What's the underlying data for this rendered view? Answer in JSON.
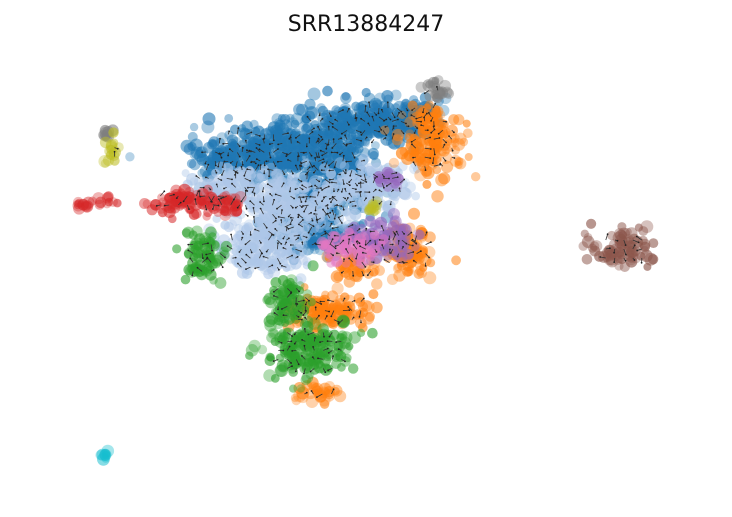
{
  "chart_data": {
    "type": "scatter",
    "title": "SRR13884247",
    "xlabel": "",
    "ylabel": "",
    "axes_visible": false,
    "grid": false,
    "legend": "none",
    "overlay": "velocity-arrows",
    "xlim": [
      0,
      100
    ],
    "ylim": [
      0,
      100
    ],
    "series": [
      {
        "color": "#1f77b4",
        "blobs": [
          [
            36,
            78,
            10,
            6
          ],
          [
            48,
            84,
            8,
            5
          ],
          [
            44,
            72,
            6,
            10
          ],
          [
            30,
            76,
            6,
            4
          ],
          [
            55,
            86,
            6,
            4
          ],
          [
            42,
            60,
            6,
            5
          ]
        ]
      },
      {
        "color": "#aec7e8",
        "blobs": [
          [
            38,
            66,
            8,
            6
          ],
          [
            50,
            70,
            6,
            5
          ],
          [
            28,
            70,
            5,
            4
          ],
          [
            34,
            56,
            6,
            6
          ]
        ]
      },
      {
        "color": "#ff7f0e",
        "blobs": [
          [
            60,
            80,
            4,
            7
          ],
          [
            56,
            56,
            4,
            5
          ],
          [
            44,
            42,
            6,
            4
          ],
          [
            42,
            23,
            3,
            2
          ],
          [
            59,
            86,
            2,
            2
          ],
          [
            48,
            52,
            3,
            3
          ]
        ]
      },
      {
        "color": "#2ca02c",
        "blobs": [
          [
            25,
            54,
            3,
            5
          ],
          [
            41,
            33,
            6,
            6
          ],
          [
            38,
            44,
            3,
            5
          ]
        ]
      },
      {
        "color": "#d62728",
        "blobs": [
          [
            22,
            67,
            5,
            3
          ],
          [
            28,
            66,
            3,
            2
          ],
          [
            6,
            66,
            1,
            1
          ],
          [
            10,
            67,
            2,
            1
          ]
        ]
      },
      {
        "color": "#9467bd",
        "blobs": [
          [
            52,
            58,
            5,
            4
          ],
          [
            53,
            72,
            2,
            2
          ]
        ]
      },
      {
        "color": "#e377c2",
        "blobs": [
          [
            47,
            56,
            4,
            3
          ]
        ]
      },
      {
        "color": "#8c564b",
        "blobs": [
          [
            89,
            56,
            4,
            4
          ]
        ]
      },
      {
        "color": "#7f7f7f",
        "blobs": [
          [
            60,
            92,
            2,
            2
          ],
          [
            10,
            82,
            1,
            1
          ]
        ]
      },
      {
        "color": "#bcbd22",
        "blobs": [
          [
            11,
            78,
            1,
            3
          ],
          [
            51,
            65,
            1,
            1
          ]
        ]
      },
      {
        "color": "#17becf",
        "blobs": [
          [
            10,
            9,
            1,
            1
          ]
        ]
      }
    ]
  }
}
